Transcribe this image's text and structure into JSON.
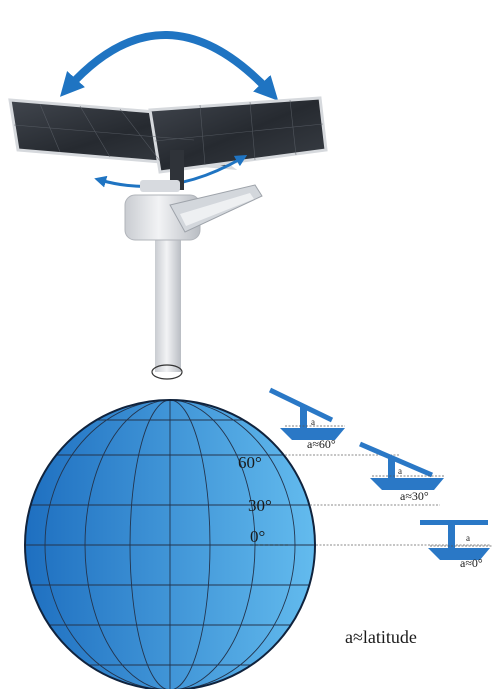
{
  "colors": {
    "arrow": "#1f74c2",
    "globe_dark": "#1e6fc0",
    "globe_light": "#63bbee",
    "bracket": "#2a78c6",
    "panel": "#2c3138",
    "pole": "#e3e5e8",
    "grid": "#23344d"
  },
  "latitude_labels": {
    "lat60": "60°",
    "lat30": "30°",
    "lat0": "0°"
  },
  "brackets": {
    "b60": {
      "tag": "a",
      "caption": "a≈60°"
    },
    "b30": {
      "tag": "a",
      "caption": "a≈30°"
    },
    "b0": {
      "tag": "a",
      "caption": "a≈0°"
    }
  },
  "footer": {
    "note": "a≈latitude"
  }
}
